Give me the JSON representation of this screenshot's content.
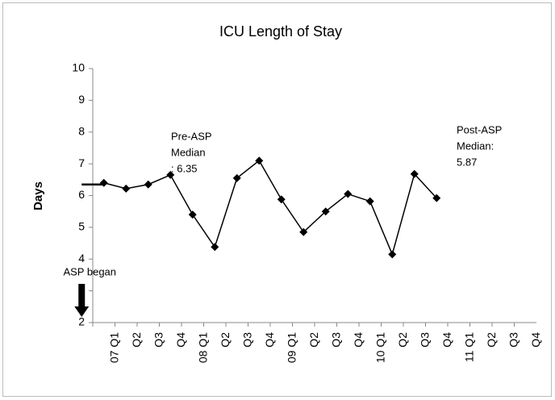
{
  "chart_data": {
    "type": "line",
    "title": "ICU Length of Stay",
    "y_label": "Days",
    "categories": [
      "07 Q1",
      "Q2",
      "Q3",
      "Q4",
      "08 Q1",
      "Q2",
      "Q3",
      "Q4",
      "09 Q1",
      "Q2",
      "Q3",
      "Q4",
      "10 Q1",
      "Q2",
      "Q3",
      "Q4",
      "11 Q1",
      "Q2",
      "Q3",
      "Q4"
    ],
    "series": [
      {
        "name": "ICU Length of Stay",
        "color": "#000000",
        "values": [
          6.4,
          6.22,
          6.35,
          6.65,
          5.4,
          4.38,
          6.55,
          7.1,
          5.88,
          4.85,
          5.5,
          6.05,
          5.82,
          4.15,
          6.68,
          5.92,
          null,
          null,
          null,
          null
        ]
      }
    ],
    "ylim": [
      2,
      10
    ],
    "yticks": [
      2,
      3,
      4,
      5,
      6,
      7,
      8,
      9,
      10
    ],
    "grid": false,
    "medians": [
      {
        "lines": [
          "Pre-ASP",
          "Median",
          ": 6.35"
        ],
        "value": 6.35,
        "from_category": "07 Q1",
        "to_category": "08 Q3",
        "style": "solid"
      },
      {
        "lines": [
          "Post-ASP",
          "Median:",
          "5.87"
        ],
        "value": 5.87,
        "from_category": "08 Q4",
        "to_category": "11 Q4",
        "style": "dashed"
      }
    ],
    "annotation": {
      "text": "ASP began",
      "category": "08 Q4"
    }
  }
}
